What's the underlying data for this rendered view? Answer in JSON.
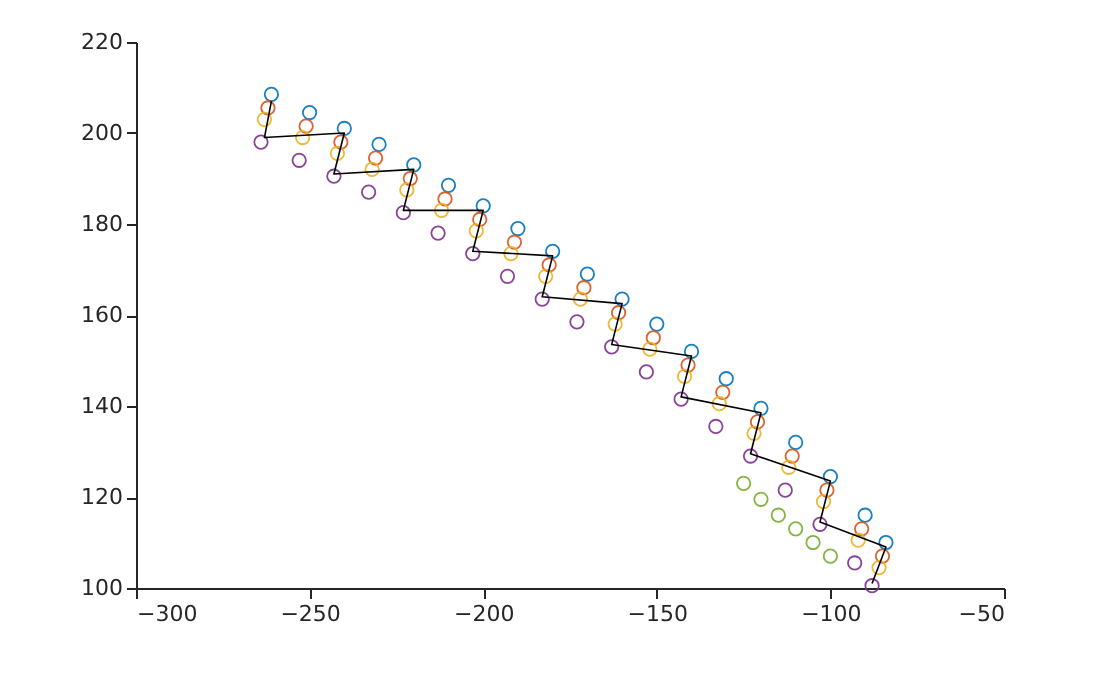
{
  "chart_data": {
    "type": "scatter",
    "marker": "circle",
    "grid": false,
    "xlim": [
      -300,
      -50
    ],
    "xticks": [
      -300,
      -250,
      -200,
      -150,
      -100,
      -50
    ],
    "ylim": [
      100,
      220
    ],
    "yticks": [
      100,
      120,
      140,
      160,
      180,
      200,
      220
    ],
    "series": [
      {
        "color": "#0072bd",
        "x": [
          -261,
          -250,
          -240,
          -230,
          -220,
          -210,
          -200,
          -190,
          -180,
          -170,
          -160,
          -150,
          -140,
          -130,
          -120,
          -110,
          -100,
          -90,
          -84
        ],
        "values": [
          208.5,
          204.5,
          201,
          197.5,
          193,
          188.5,
          184,
          179,
          174,
          169,
          163.5,
          158,
          152,
          146,
          139.5,
          132,
          124.5,
          116,
          110
        ]
      },
      {
        "color": "#d95319",
        "x": [
          -262,
          -251,
          -241,
          -231,
          -221,
          -211,
          -201,
          -191,
          -181,
          -171,
          -161,
          -151,
          -141,
          -131,
          -121,
          -111,
          -101,
          -91,
          -85
        ],
        "values": [
          205.5,
          201.5,
          198,
          194.5,
          190,
          185.5,
          181,
          176,
          171,
          166,
          160.5,
          155,
          149,
          143,
          136.5,
          129,
          121.5,
          113,
          107
        ]
      },
      {
        "color": "#edb120",
        "x": [
          -263,
          -252,
          -242,
          -232,
          -222,
          -212,
          -202,
          -192,
          -182,
          -172,
          -162,
          -152,
          -142,
          -132,
          -122,
          -112,
          -102,
          -92,
          -86
        ],
        "values": [
          203,
          199,
          195.5,
          192,
          187.5,
          183,
          178.5,
          173.5,
          168.5,
          163.5,
          158,
          152.5,
          146.5,
          140.5,
          134,
          126.5,
          119,
          110.5,
          104.5
        ]
      },
      {
        "color": "#7e2f8e",
        "x": [
          -264,
          -253,
          -243,
          -233,
          -223,
          -213,
          -203,
          -193,
          -183,
          -173,
          -163,
          -153,
          -143,
          -133,
          -123,
          -113,
          -103,
          -93,
          -88
        ],
        "values": [
          198,
          194,
          190.5,
          187,
          182.5,
          178,
          173.5,
          168.5,
          163.5,
          158.5,
          153,
          147.5,
          141.5,
          135.5,
          129,
          121.5,
          114,
          105.5,
          100.5
        ]
      },
      {
        "color": "#77ac30",
        "x": [
          -125,
          -120,
          -115,
          -110,
          -105,
          -100
        ],
        "values": [
          123,
          119.5,
          116,
          113,
          110,
          107
        ]
      },
      {
        "type": "line",
        "marker": "none",
        "line_style": "solid",
        "color": "#000000",
        "x": [
          -261,
          -263,
          -240,
          -243,
          -220,
          -223,
          -200,
          -203,
          -180,
          -183,
          -160,
          -163,
          -140,
          -143,
          -120,
          -123,
          -100,
          -103,
          -84,
          -88
        ],
        "values": [
          207,
          199,
          200,
          191,
          192,
          183,
          183,
          174,
          173,
          164,
          162.5,
          153.5,
          151,
          142,
          138.5,
          129.5,
          123.5,
          114.5,
          109,
          101
        ]
      }
    ]
  }
}
